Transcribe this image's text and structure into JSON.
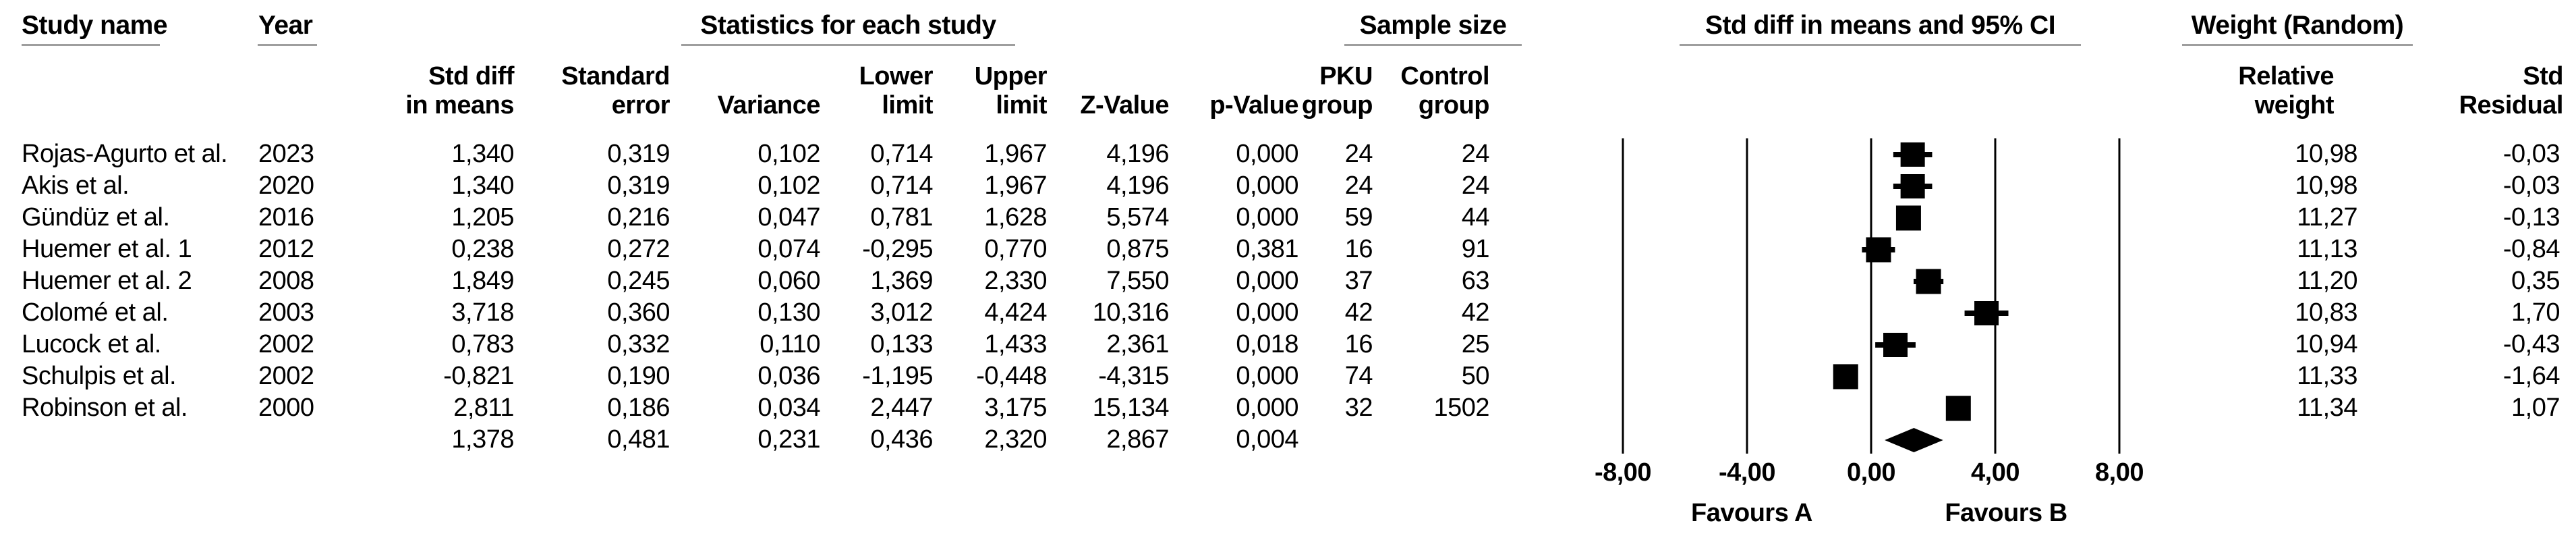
{
  "table": {
    "group_headers": {
      "study_name": "Study name",
      "year": "Year",
      "statistics": "Statistics for each study",
      "sample_size": "Sample size",
      "ci_plot": "Std diff in means and 95% CI",
      "weight": "Weight (Random)"
    },
    "column_headers": {
      "std_diff": {
        "l1": "Std diff",
        "l2": "in means"
      },
      "std_err": {
        "l1": "Standard",
        "l2": "error"
      },
      "variance": {
        "l1": "",
        "l2": "Variance"
      },
      "lower": {
        "l1": "Lower",
        "l2": "limit"
      },
      "upper": {
        "l1": "Upper",
        "l2": "limit"
      },
      "z": {
        "l1": "",
        "l2": "Z-Value"
      },
      "p": {
        "l1": "",
        "l2": "p-Value"
      },
      "pku": {
        "l1": "PKU",
        "l2": "group"
      },
      "control": {
        "l1": "Control",
        "l2": "group"
      },
      "rel_weight": {
        "l1": "Relative",
        "l2": "weight"
      },
      "std_residual": {
        "l1": "Std",
        "l2": "Residual"
      }
    },
    "rows": [
      {
        "study": "Rojas-Agurto et al.",
        "year": "2023",
        "std_diff": "1,340",
        "std_err": "0,319",
        "variance": "0,102",
        "lower": "0,714",
        "upper": "1,967",
        "z": "4,196",
        "p": "0,000",
        "pku": "24",
        "control": "24",
        "rel_weight": "10,98",
        "std_residual": "-0,03"
      },
      {
        "study": "Akis et al.",
        "year": "2020",
        "std_diff": "1,340",
        "std_err": "0,319",
        "variance": "0,102",
        "lower": "0,714",
        "upper": "1,967",
        "z": "4,196",
        "p": "0,000",
        "pku": "24",
        "control": "24",
        "rel_weight": "10,98",
        "std_residual": "-0,03"
      },
      {
        "study": "Gündüz et al.",
        "year": "2016",
        "std_diff": "1,205",
        "std_err": "0,216",
        "variance": "0,047",
        "lower": "0,781",
        "upper": "1,628",
        "z": "5,574",
        "p": "0,000",
        "pku": "59",
        "control": "44",
        "rel_weight": "11,27",
        "std_residual": "-0,13"
      },
      {
        "study": "Huemer et al. 1",
        "year": "2012",
        "std_diff": "0,238",
        "std_err": "0,272",
        "variance": "0,074",
        "lower": "-0,295",
        "upper": "0,770",
        "z": "0,875",
        "p": "0,381",
        "pku": "16",
        "control": "91",
        "rel_weight": "11,13",
        "std_residual": "-0,84"
      },
      {
        "study": "Huemer et al. 2",
        "year": "2008",
        "std_diff": "1,849",
        "std_err": "0,245",
        "variance": "0,060",
        "lower": "1,369",
        "upper": "2,330",
        "z": "7,550",
        "p": "0,000",
        "pku": "37",
        "control": "63",
        "rel_weight": "11,20",
        "std_residual": "0,35"
      },
      {
        "study": "Colomé et al.",
        "year": "2003",
        "std_diff": "3,718",
        "std_err": "0,360",
        "variance": "0,130",
        "lower": "3,012",
        "upper": "4,424",
        "z": "10,316",
        "p": "0,000",
        "pku": "42",
        "control": "42",
        "rel_weight": "10,83",
        "std_residual": "1,70"
      },
      {
        "study": "Lucock et al.",
        "year": "2002",
        "std_diff": "0,783",
        "std_err": "0,332",
        "variance": "0,110",
        "lower": "0,133",
        "upper": "1,433",
        "z": "2,361",
        "p": "0,018",
        "pku": "16",
        "control": "25",
        "rel_weight": "10,94",
        "std_residual": "-0,43"
      },
      {
        "study": "Schulpis et al.",
        "year": "2002",
        "std_diff": "-0,821",
        "std_err": "0,190",
        "variance": "0,036",
        "lower": "-1,195",
        "upper": "-0,448",
        "z": "-4,315",
        "p": "0,000",
        "pku": "74",
        "control": "50",
        "rel_weight": "11,33",
        "std_residual": "-1,64"
      },
      {
        "study": "Robinson et al.",
        "year": "2000",
        "std_diff": "2,811",
        "std_err": "0,186",
        "variance": "0,034",
        "lower": "2,447",
        "upper": "3,175",
        "z": "15,134",
        "p": "0,000",
        "pku": "32",
        "control": "1502",
        "rel_weight": "11,34",
        "std_residual": "1,07"
      },
      {
        "study": "",
        "year": "",
        "std_diff": "1,378",
        "std_err": "0,481",
        "variance": "0,231",
        "lower": "0,436",
        "upper": "2,320",
        "z": "2,867",
        "p": "0,004",
        "pku": "",
        "control": "",
        "rel_weight": "",
        "std_residual": ""
      }
    ]
  },
  "chart_data": {
    "type": "scatter",
    "subtype": "forest-plot",
    "title": "Std diff in means and 95% CI",
    "x_axis": {
      "range": [
        -8,
        8
      ],
      "ticks": [
        -8,
        -4,
        0,
        4,
        8
      ],
      "tick_labels": [
        "-8,00",
        "-4,00",
        "0,00",
        "4,00",
        "8,00"
      ]
    },
    "gridlines": [
      -8,
      -4,
      0,
      4,
      8
    ],
    "grid": true,
    "legend_position": "none",
    "footer_labels": [
      "Favours A",
      "Favours B"
    ],
    "points": [
      {
        "study": "Rojas-Agurto et al.",
        "estimate": 1.34,
        "ci": [
          0.714,
          1.967
        ],
        "weight": 10.98
      },
      {
        "study": "Akis et al.",
        "estimate": 1.34,
        "ci": [
          0.714,
          1.967
        ],
        "weight": 10.98
      },
      {
        "study": "Gündüz et al.",
        "estimate": 1.205,
        "ci": [
          0.781,
          1.628
        ],
        "weight": 11.27
      },
      {
        "study": "Huemer et al. 1",
        "estimate": 0.238,
        "ci": [
          -0.295,
          0.77
        ],
        "weight": 11.13
      },
      {
        "study": "Huemer et al. 2",
        "estimate": 1.849,
        "ci": [
          1.369,
          2.33
        ],
        "weight": 11.2
      },
      {
        "study": "Colomé et al.",
        "estimate": 3.718,
        "ci": [
          3.012,
          4.424
        ],
        "weight": 10.83
      },
      {
        "study": "Lucock et al.",
        "estimate": 0.783,
        "ci": [
          0.133,
          1.433
        ],
        "weight": 10.94
      },
      {
        "study": "Schulpis et al.",
        "estimate": -0.821,
        "ci": [
          -1.195,
          -0.448
        ],
        "weight": 11.33
      },
      {
        "study": "Robinson et al.",
        "estimate": 2.811,
        "ci": [
          2.447,
          3.175
        ],
        "weight": 11.34
      }
    ],
    "summary": {
      "estimate": 1.378,
      "ci": [
        0.436,
        2.32
      ],
      "marker": "diamond"
    }
  },
  "colors": {
    "text": "#000000",
    "marker": "#000000",
    "gridline": "#000000",
    "underline": "#9e9e9e"
  }
}
